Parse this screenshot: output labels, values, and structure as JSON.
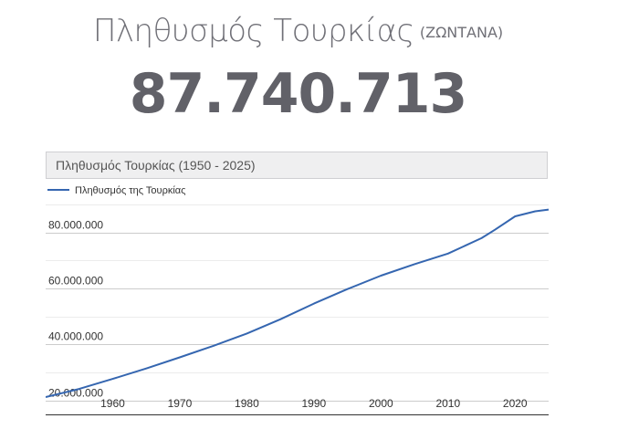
{
  "header": {
    "title": "Πληθυσμός Τουρκίας",
    "live_label": "(ΖΩΝΤΑΝΑ)"
  },
  "counter": {
    "value": "87.740.713"
  },
  "chart_data": {
    "type": "line",
    "title": "Πληθυσμός Τουρκίας (1950 - 2025)",
    "legend_position": "top-left",
    "grid": true,
    "xlim": [
      1950,
      2025
    ],
    "ylim": [
      15000000,
      92000000
    ],
    "x_ticks": [
      {
        "value": 1960,
        "label": "1960"
      },
      {
        "value": 1970,
        "label": "1970"
      },
      {
        "value": 1980,
        "label": "1980"
      },
      {
        "value": 1990,
        "label": "1990"
      },
      {
        "value": 2000,
        "label": "2000"
      },
      {
        "value": 2010,
        "label": "2010"
      },
      {
        "value": 2020,
        "label": "2020"
      }
    ],
    "y_ticks": [
      {
        "value": 20000000,
        "label": "20.000.000"
      },
      {
        "value": 40000000,
        "label": "40.000.000"
      },
      {
        "value": 60000000,
        "label": "60.000.000"
      },
      {
        "value": 80000000,
        "label": "80.000.000"
      }
    ],
    "series": [
      {
        "name": "Πληθυσμός της Τουρκίας",
        "color": "#3566b0",
        "x": [
          1950,
          1955,
          1960,
          1965,
          1970,
          1975,
          1980,
          1985,
          1990,
          1995,
          2000,
          2005,
          2010,
          2015,
          2017,
          2020,
          2023,
          2025
        ],
        "y": [
          21200000,
          24100000,
          27700000,
          31400000,
          35400000,
          39500000,
          43900000,
          49000000,
          54600000,
          59800000,
          64600000,
          68700000,
          72500000,
          78000000,
          81000000,
          85800000,
          87600000,
          88200000
        ]
      }
    ]
  }
}
